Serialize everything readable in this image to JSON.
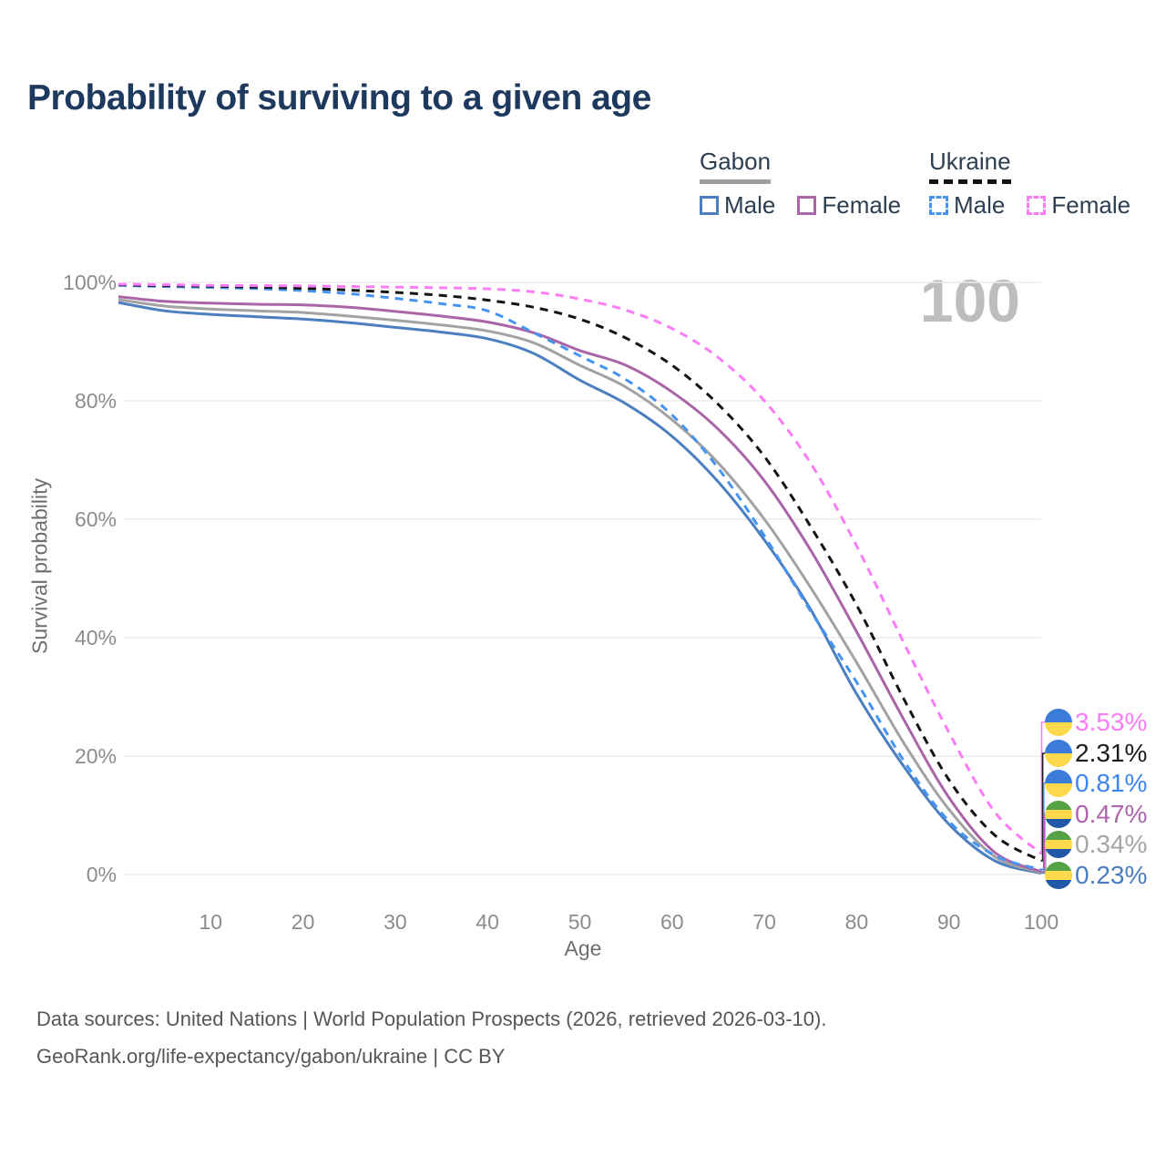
{
  "header": {
    "title": "Probability of surviving to a given age"
  },
  "legend": {
    "groups": [
      {
        "title": "Gabon",
        "line_style": "solid",
        "underline_color": "#9e9e9e",
        "items": [
          {
            "label": "Male",
            "color": "#4c7fc0"
          },
          {
            "label": "Female",
            "color": "#aa64a8"
          }
        ]
      },
      {
        "title": "Ukraine",
        "line_style": "dashed",
        "underline_color": "#111111",
        "items": [
          {
            "label": "Male",
            "color": "#4694f1"
          },
          {
            "label": "Female",
            "color": "#fb7cf6"
          }
        ]
      }
    ]
  },
  "plot": {
    "watermark": "100"
  },
  "axes": {
    "y_label": "Survival probability",
    "x_label": "Age",
    "y_ticks": [
      "100%",
      "80%",
      "60%",
      "40%",
      "20%",
      "0%"
    ],
    "x_ticks": [
      "10",
      "20",
      "30",
      "40",
      "50",
      "60",
      "70",
      "80",
      "90",
      "100"
    ]
  },
  "chart_data": {
    "type": "line",
    "title": "Probability of surviving to a given age",
    "xlabel": "Age",
    "ylabel": "Survival probability",
    "xlim": [
      0,
      100
    ],
    "ylim": [
      0,
      100
    ],
    "grid": "horizontal",
    "legend_position": "top-right",
    "x": [
      0,
      5,
      10,
      15,
      20,
      25,
      30,
      35,
      40,
      45,
      50,
      55,
      60,
      65,
      70,
      75,
      80,
      85,
      90,
      95,
      100
    ],
    "series": [
      {
        "key": "gabon-male",
        "name": "Gabon Male",
        "color": "#4c7fc0",
        "dash": "solid",
        "end_label": "0.23%",
        "values": [
          96.6,
          95.2,
          94.6,
          94.2,
          93.8,
          93.2,
          92.4,
          91.6,
          90.5,
          88.0,
          83.5,
          79.5,
          74.0,
          66.3,
          56.5,
          44.8,
          30.5,
          18.5,
          8.5,
          2.3,
          0.23
        ]
      },
      {
        "key": "gabon-total",
        "name": "Gabon (both sexes)",
        "color": "#a2a2a2",
        "dash": "solid",
        "end_label": "0.34%",
        "values": [
          97.1,
          96.0,
          95.5,
          95.2,
          94.9,
          94.3,
          93.6,
          92.8,
          91.8,
          89.8,
          86.0,
          82.3,
          76.8,
          69.5,
          60.0,
          48.5,
          35.8,
          22.5,
          11.0,
          3.0,
          0.34
        ]
      },
      {
        "key": "gabon-female",
        "name": "Gabon Female",
        "color": "#aa64a8",
        "dash": "solid",
        "end_label": "0.47%",
        "values": [
          97.6,
          96.8,
          96.5,
          96.3,
          96.2,
          95.8,
          95.1,
          94.3,
          93.3,
          91.5,
          88.5,
          86.0,
          81.5,
          75.2,
          66.5,
          54.8,
          41.0,
          26.5,
          13.0,
          3.7,
          0.47
        ]
      },
      {
        "key": "ukraine-male",
        "name": "Ukraine Male",
        "color": "#4694f1",
        "dash": "dashed",
        "end_label": "0.81%",
        "values": [
          99.5,
          99.3,
          99.15,
          98.95,
          98.6,
          98.1,
          97.3,
          96.4,
          95.2,
          91.5,
          87.6,
          83.6,
          77.6,
          68.6,
          57.2,
          44.5,
          32.5,
          19.5,
          9.0,
          3.2,
          0.81
        ]
      },
      {
        "key": "ukraine-total",
        "name": "Ukraine (both sexes)",
        "color": "#141414",
        "dash": "dashed",
        "end_label": "2.31%",
        "values": [
          99.6,
          99.45,
          99.35,
          99.2,
          99.0,
          98.7,
          98.3,
          97.8,
          97.0,
          95.8,
          93.8,
          90.6,
          86.0,
          79.4,
          70.6,
          58.8,
          45.5,
          30.0,
          16.0,
          6.6,
          2.31
        ]
      },
      {
        "key": "ukraine-female",
        "name": "Ukraine Female",
        "color": "#fb7cf6",
        "dash": "dashed",
        "end_label": "3.53%",
        "values": [
          99.7,
          99.6,
          99.5,
          99.45,
          99.4,
          99.3,
          99.2,
          99.1,
          98.9,
          98.4,
          97.2,
          95.3,
          92.2,
          87.3,
          80.0,
          69.5,
          55.5,
          39.5,
          24.0,
          10.5,
          3.53
        ]
      }
    ]
  },
  "end_labels": [
    {
      "value": "3.53%",
      "color": "#fa7df7",
      "flag": "ukraine",
      "series_key": "ukraine-female"
    },
    {
      "value": "2.31%",
      "color": "#1c1c1c",
      "flag": "ukraine",
      "series_key": "ukraine-total"
    },
    {
      "value": "0.81%",
      "color": "#3d85f0",
      "flag": "ukraine",
      "series_key": "ukraine-male"
    },
    {
      "value": "0.47%",
      "color": "#ad64ad",
      "flag": "gabon",
      "series_key": "gabon-female"
    },
    {
      "value": "0.34%",
      "color": "#a6a6a6",
      "flag": "gabon",
      "series_key": "gabon-total"
    },
    {
      "value": "0.23%",
      "color": "#4a7dc0",
      "flag": "gabon",
      "series_key": "gabon-male"
    }
  ],
  "footer": {
    "line1": "Data sources: United Nations | World Population Prospects (2026, retrieved 2026-03-10).",
    "line2": "GeoRank.org/life-expectancy/gabon/ukraine | CC BY"
  }
}
